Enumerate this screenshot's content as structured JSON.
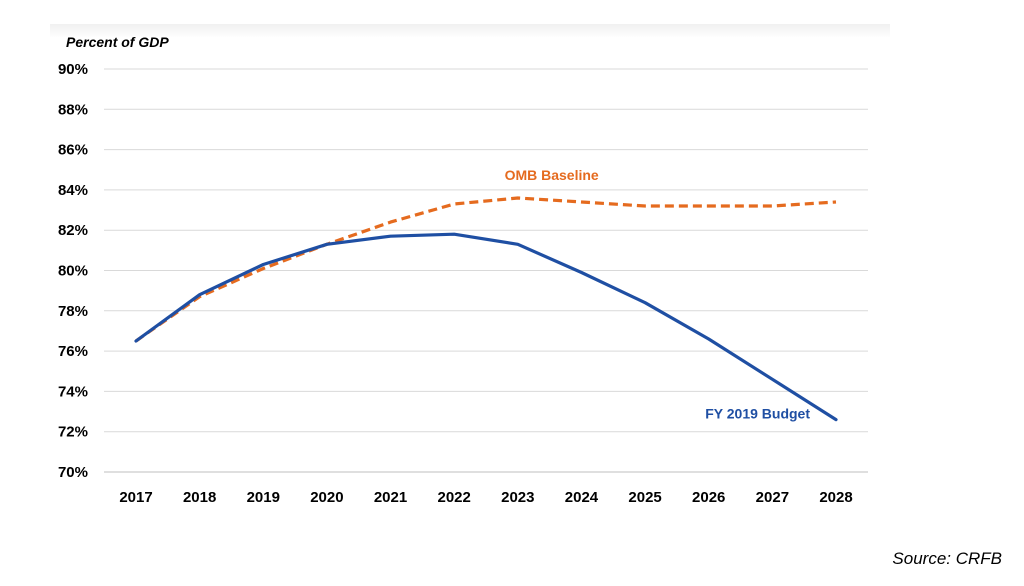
{
  "chart_data": {
    "type": "line",
    "ylabel": "Percent of GDP",
    "x": [
      "2017",
      "2018",
      "2019",
      "2020",
      "2021",
      "2022",
      "2023",
      "2024",
      "2025",
      "2026",
      "2027",
      "2028"
    ],
    "yticks": [
      "70%",
      "72%",
      "74%",
      "76%",
      "78%",
      "80%",
      "82%",
      "84%",
      "86%",
      "88%",
      "90%"
    ],
    "ylim": [
      70,
      90
    ],
    "grid": true,
    "series": [
      {
        "name": "OMB Baseline",
        "style": "dashed",
        "color": "#e56b1f",
        "values": [
          76.5,
          78.7,
          80.1,
          81.3,
          82.4,
          83.3,
          83.6,
          83.4,
          83.2,
          83.2,
          83.2,
          83.4
        ]
      },
      {
        "name": "FY 2019 Budget",
        "style": "solid",
        "color": "#1f4fa3",
        "values": [
          76.5,
          78.8,
          80.3,
          81.3,
          81.7,
          81.8,
          81.3,
          79.9,
          78.4,
          76.6,
          74.6,
          72.6
        ]
      }
    ]
  },
  "source": "Source: CRFB"
}
